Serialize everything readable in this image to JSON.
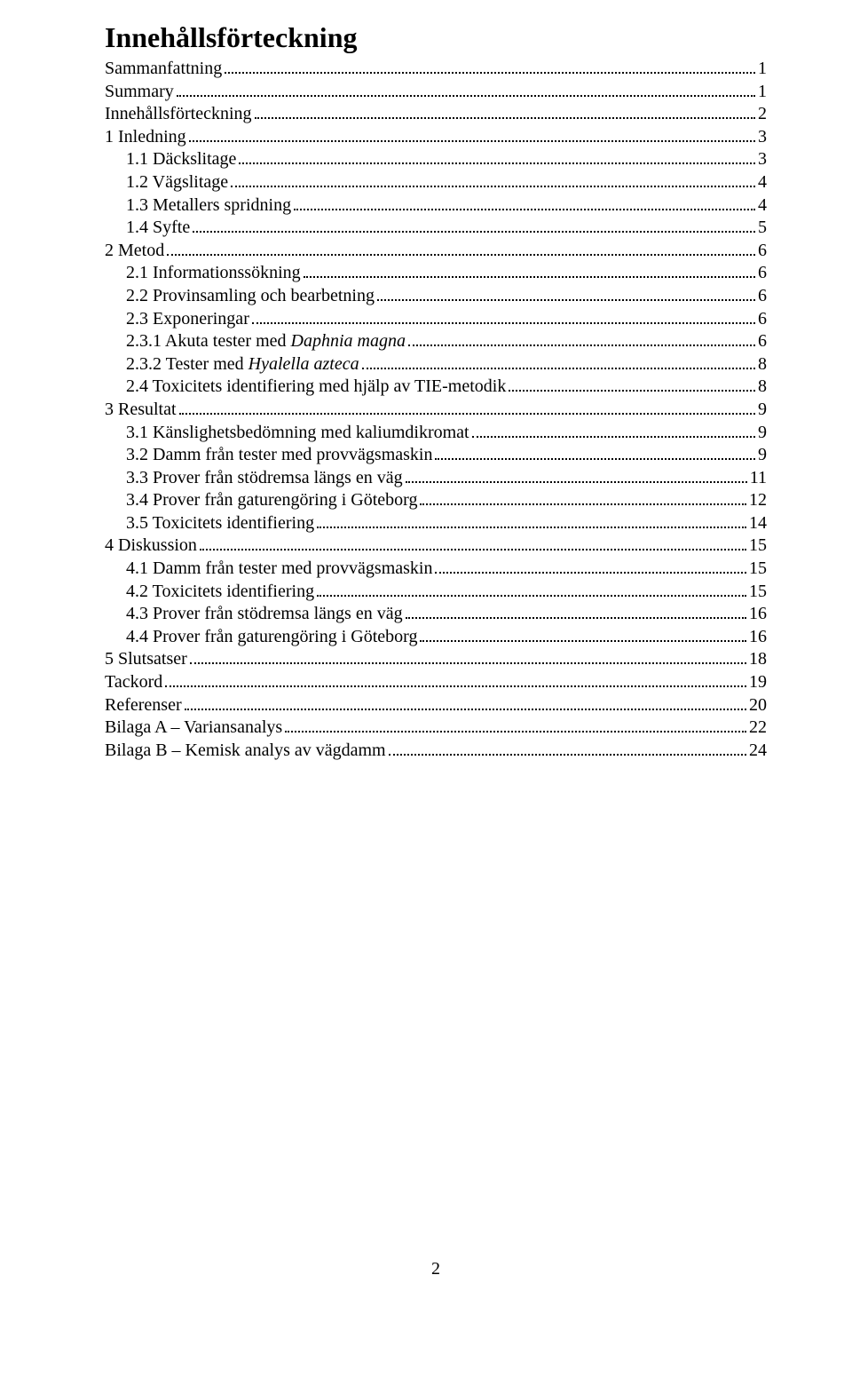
{
  "title": "Innehållsförteckning",
  "page_number": "2",
  "toc": [
    {
      "level": 0,
      "label": "Sammanfattning",
      "page": "1"
    },
    {
      "level": 0,
      "label": "Summary",
      "page": "1"
    },
    {
      "level": 0,
      "label": "Innehållsförteckning",
      "page": "2"
    },
    {
      "level": 0,
      "label": "1 Inledning",
      "page": "3"
    },
    {
      "level": 1,
      "label": "1.1 Däckslitage",
      "page": "3"
    },
    {
      "level": 1,
      "label": "1.2 Vägslitage",
      "page": "4"
    },
    {
      "level": 1,
      "label": "1.3 Metallers spridning",
      "page": "4"
    },
    {
      "level": 1,
      "label": "1.4 Syfte",
      "page": "5"
    },
    {
      "level": 0,
      "label": "2 Metod",
      "page": "6"
    },
    {
      "level": 1,
      "label": "2.1 Informationssökning",
      "page": "6"
    },
    {
      "level": 1,
      "label": "2.2 Provinsamling och bearbetning",
      "page": "6"
    },
    {
      "level": 1,
      "label": "2.3 Exponeringar",
      "page": "6"
    },
    {
      "level": 1,
      "label_parts": [
        {
          "text": "2.3.1 Akuta tester med ",
          "italic": false
        },
        {
          "text": "Daphnia magna",
          "italic": true
        }
      ],
      "page": "6"
    },
    {
      "level": 1,
      "label_parts": [
        {
          "text": "2.3.2 Tester med ",
          "italic": false
        },
        {
          "text": "Hyalella azteca",
          "italic": true
        }
      ],
      "page": "8"
    },
    {
      "level": 1,
      "label": "2.4 Toxicitets identifiering med hjälp av TIE-metodik",
      "page": "8"
    },
    {
      "level": 0,
      "label": "3 Resultat",
      "page": "9"
    },
    {
      "level": 1,
      "label": "3.1 Känslighetsbedömning med kaliumdikromat",
      "page": "9"
    },
    {
      "level": 1,
      "label": "3.2 Damm från tester med provvägsmaskin",
      "page": "9"
    },
    {
      "level": 1,
      "label": "3.3 Prover från stödremsa längs en väg",
      "page": "11"
    },
    {
      "level": 1,
      "label": "3.4 Prover från gaturengöring i Göteborg",
      "page": "12"
    },
    {
      "level": 1,
      "label": "3.5 Toxicitets identifiering",
      "page": "14"
    },
    {
      "level": 0,
      "label": "4 Diskussion",
      "page": "15"
    },
    {
      "level": 1,
      "label": "4.1 Damm från tester med provvägsmaskin",
      "page": "15"
    },
    {
      "level": 1,
      "label": "4.2 Toxicitets identifiering",
      "page": "15"
    },
    {
      "level": 1,
      "label": "4.3 Prover från stödremsa längs en väg",
      "page": "16"
    },
    {
      "level": 1,
      "label": "4.4 Prover från gaturengöring i Göteborg",
      "page": "16"
    },
    {
      "level": 0,
      "label": "5 Slutsatser",
      "page": "18"
    },
    {
      "level": 0,
      "label": "Tackord",
      "page": "19"
    },
    {
      "level": 0,
      "label": "Referenser",
      "page": "20"
    },
    {
      "level": 0,
      "label": "Bilaga A – Variansanalys",
      "page": "22"
    },
    {
      "level": 0,
      "label": "Bilaga B – Kemisk analys av vägdamm",
      "page": "24"
    }
  ]
}
